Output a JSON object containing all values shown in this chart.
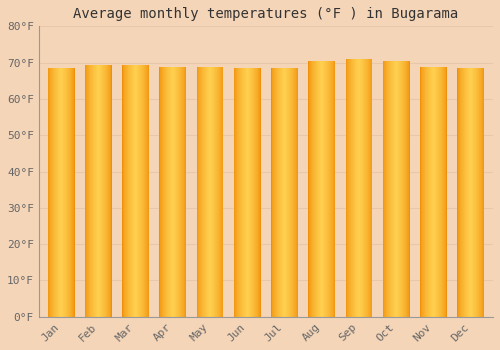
{
  "title": "Average monthly temperatures (°F ) in Bugarama",
  "months": [
    "Jan",
    "Feb",
    "Mar",
    "Apr",
    "May",
    "Jun",
    "Jul",
    "Aug",
    "Sep",
    "Oct",
    "Nov",
    "Dec"
  ],
  "values": [
    68.5,
    69.3,
    69.4,
    68.9,
    68.7,
    68.4,
    68.5,
    70.5,
    71.1,
    70.5,
    68.7,
    68.6
  ],
  "bar_color_center": "#FFD050",
  "bar_color_edge": "#F0900A",
  "background_color": "#F5D5B8",
  "plot_bg_color": "#F5D5B8",
  "grid_color": "#E8C8A8",
  "ylim": [
    0,
    80
  ],
  "yticks": [
    0,
    10,
    20,
    30,
    40,
    50,
    60,
    70,
    80
  ],
  "ytick_labels": [
    "0°F",
    "10°F",
    "20°F",
    "30°F",
    "40°F",
    "50°F",
    "60°F",
    "70°F",
    "80°F"
  ],
  "title_fontsize": 10,
  "tick_fontsize": 8,
  "tick_font_color": "#666666",
  "bar_width": 0.72
}
